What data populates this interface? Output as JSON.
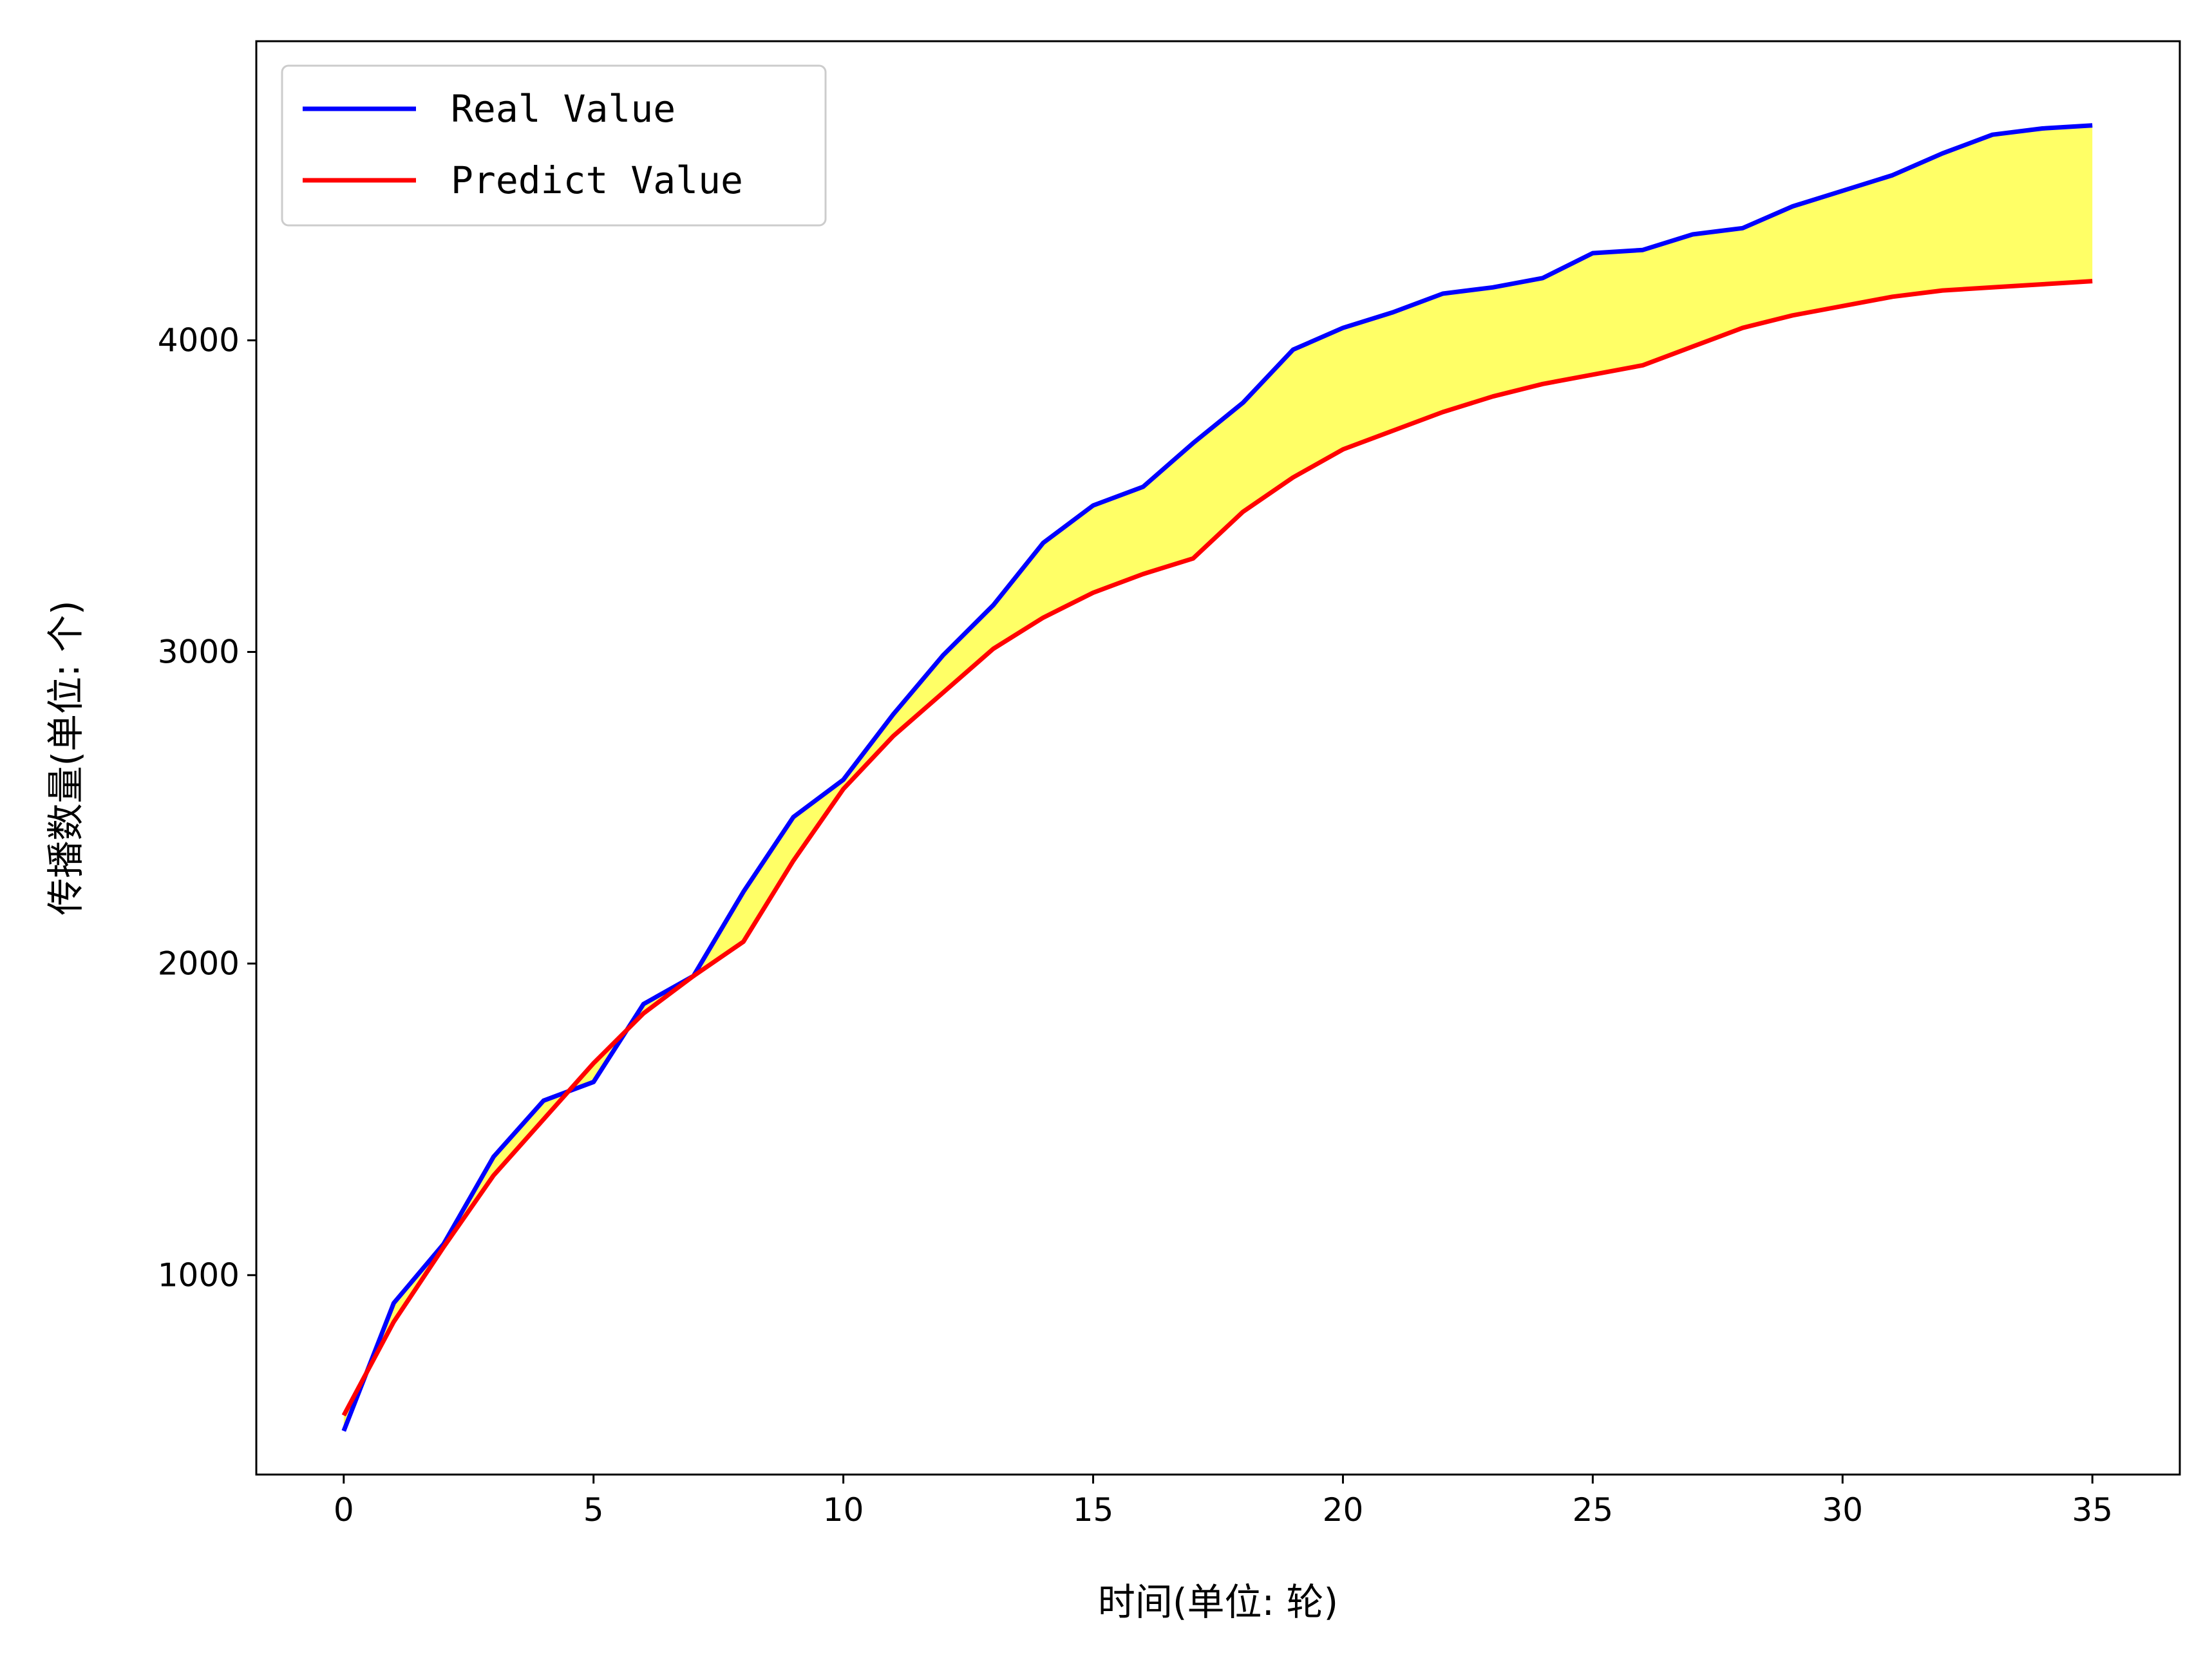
{
  "chart_data": {
    "type": "line",
    "title": "",
    "xlabel": "时间(单位: 轮)",
    "ylabel": "传播数量(单位: 个)",
    "xlim": [
      -1.75,
      36.75
    ],
    "ylim": [
      360,
      4960
    ],
    "xticks": [
      0,
      5,
      10,
      15,
      20,
      25,
      30,
      35
    ],
    "yticks": [
      1000,
      2000,
      3000,
      4000
    ],
    "x": [
      0,
      1,
      2,
      3,
      4,
      5,
      6,
      7,
      8,
      9,
      10,
      11,
      12,
      13,
      14,
      15,
      16,
      17,
      18,
      19,
      20,
      21,
      22,
      23,
      24,
      25,
      26,
      27,
      28,
      29,
      30,
      31,
      32,
      33,
      34,
      35
    ],
    "series": [
      {
        "name": "Real Value",
        "color": "#0000ff",
        "values": [
          500,
          910,
          1100,
          1380,
          1560,
          1620,
          1870,
          1960,
          2230,
          2470,
          2590,
          2800,
          2990,
          3150,
          3350,
          3470,
          3530,
          3670,
          3800,
          3970,
          4040,
          4090,
          4150,
          4170,
          4200,
          4280,
          4290,
          4340,
          4360,
          4430,
          4480,
          4530,
          4600,
          4660,
          4680,
          4690
        ]
      },
      {
        "name": "Predict Value",
        "color": "#ff0000",
        "values": [
          550,
          850,
          1090,
          1320,
          1500,
          1680,
          1840,
          1960,
          2070,
          2330,
          2560,
          2730,
          2870,
          3010,
          3110,
          3190,
          3250,
          3300,
          3450,
          3560,
          3650,
          3710,
          3770,
          3820,
          3860,
          3890,
          3920,
          3980,
          4040,
          4080,
          4110,
          4140,
          4160,
          4170,
          4180,
          4190
        ]
      }
    ],
    "fill_between": {
      "color": "#ffff66",
      "between": [
        "Real Value",
        "Predict Value"
      ]
    },
    "legend": {
      "position": "top-left",
      "entries": [
        "Real Value",
        "Predict Value"
      ]
    },
    "grid": false
  }
}
